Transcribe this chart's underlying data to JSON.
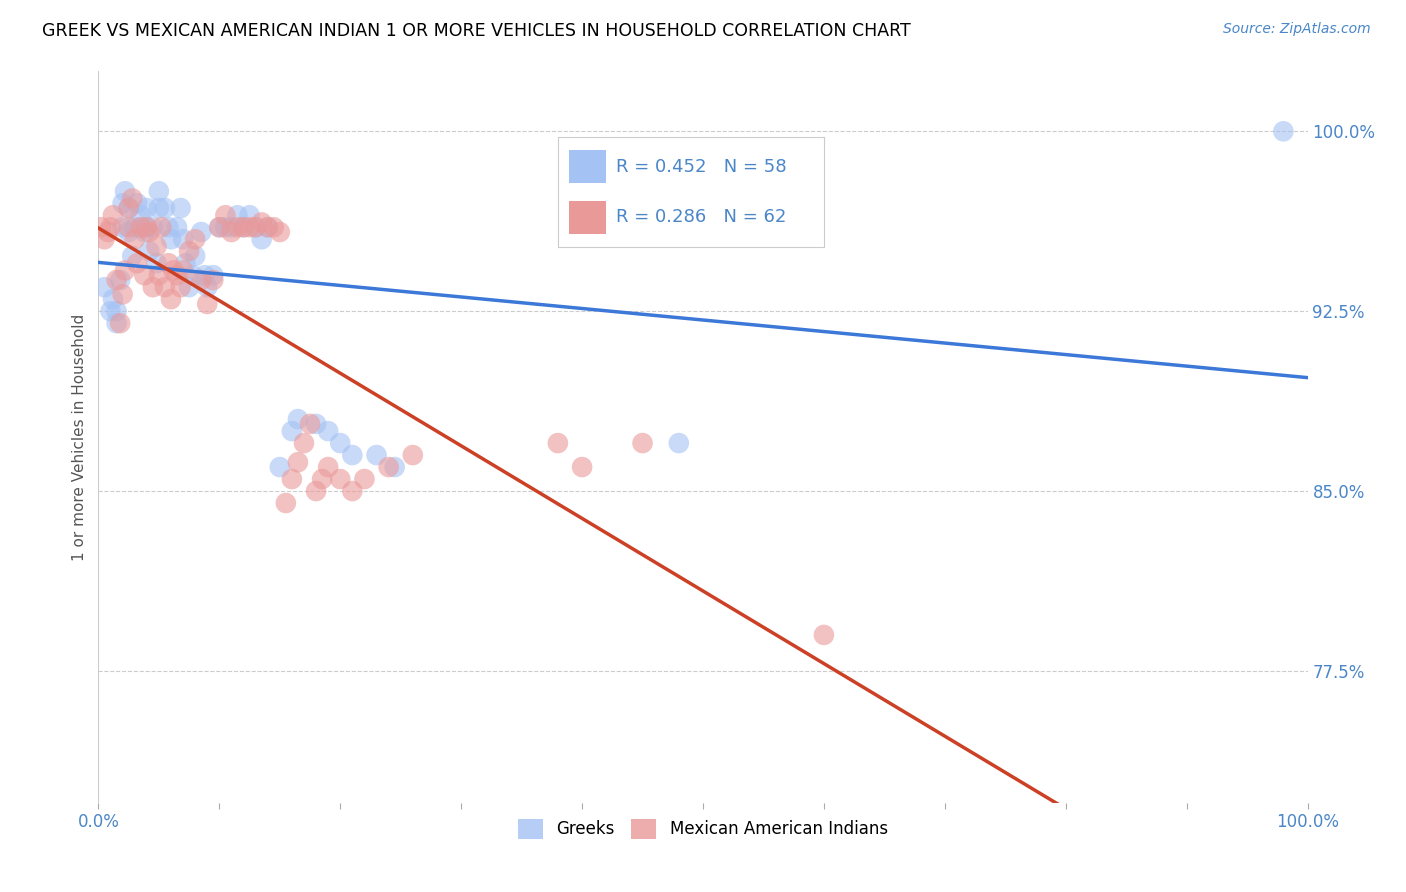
{
  "title": "GREEK VS MEXICAN AMERICAN INDIAN 1 OR MORE VEHICLES IN HOUSEHOLD CORRELATION CHART",
  "source": "Source: ZipAtlas.com",
  "ylabel": "1 or more Vehicles in Household",
  "xlim": [
    0.0,
    1.0
  ],
  "ylim": [
    0.72,
    1.025
  ],
  "yticks": [
    0.775,
    0.85,
    0.925,
    1.0
  ],
  "ytick_labels": [
    "77.5%",
    "85.0%",
    "92.5%",
    "100.0%"
  ],
  "xticks": [
    0.0,
    0.1,
    0.2,
    0.3,
    0.4,
    0.5,
    0.6,
    0.7,
    0.8,
    0.9,
    1.0
  ],
  "xtick_labels": [
    "0.0%",
    "",
    "",
    "",
    "",
    "",
    "",
    "",
    "",
    "",
    "100.0%"
  ],
  "blue_color": "#a4c2f4",
  "pink_color": "#ea9999",
  "line_blue": "#3c78d8",
  "line_pink": "#cc4125",
  "R_blue": 0.452,
  "N_blue": 58,
  "R_pink": 0.286,
  "N_pink": 62,
  "greek_x": [
    0.005,
    0.01,
    0.012,
    0.015,
    0.015,
    0.018,
    0.02,
    0.02,
    0.022,
    0.025,
    0.025,
    0.028,
    0.03,
    0.032,
    0.035,
    0.035,
    0.038,
    0.04,
    0.04,
    0.042,
    0.045,
    0.048,
    0.05,
    0.05,
    0.055,
    0.058,
    0.06,
    0.065,
    0.068,
    0.07,
    0.072,
    0.075,
    0.078,
    0.08,
    0.085,
    0.088,
    0.09,
    0.095,
    0.1,
    0.105,
    0.11,
    0.115,
    0.12,
    0.125,
    0.13,
    0.135,
    0.14,
    0.15,
    0.16,
    0.165,
    0.18,
    0.19,
    0.2,
    0.21,
    0.23,
    0.245,
    0.48,
    0.98
  ],
  "greek_y": [
    0.935,
    0.925,
    0.93,
    0.92,
    0.925,
    0.938,
    0.96,
    0.97,
    0.975,
    0.968,
    0.958,
    0.948,
    0.96,
    0.97,
    0.96,
    0.965,
    0.958,
    0.96,
    0.968,
    0.95,
    0.96,
    0.945,
    0.968,
    0.975,
    0.968,
    0.96,
    0.955,
    0.96,
    0.968,
    0.955,
    0.945,
    0.935,
    0.94,
    0.948,
    0.958,
    0.94,
    0.935,
    0.94,
    0.96,
    0.96,
    0.96,
    0.965,
    0.96,
    0.965,
    0.96,
    0.955,
    0.96,
    0.86,
    0.875,
    0.88,
    0.878,
    0.875,
    0.87,
    0.865,
    0.865,
    0.86,
    0.87,
    1.0
  ],
  "mexican_x": [
    0.002,
    0.005,
    0.008,
    0.01,
    0.012,
    0.015,
    0.018,
    0.02,
    0.022,
    0.025,
    0.025,
    0.028,
    0.03,
    0.032,
    0.035,
    0.038,
    0.04,
    0.042,
    0.045,
    0.048,
    0.05,
    0.052,
    0.055,
    0.058,
    0.06,
    0.062,
    0.065,
    0.068,
    0.07,
    0.075,
    0.08,
    0.085,
    0.09,
    0.095,
    0.1,
    0.105,
    0.11,
    0.115,
    0.12,
    0.125,
    0.13,
    0.135,
    0.14,
    0.145,
    0.15,
    0.155,
    0.16,
    0.165,
    0.17,
    0.175,
    0.18,
    0.185,
    0.19,
    0.2,
    0.21,
    0.22,
    0.24,
    0.26,
    0.38,
    0.4,
    0.45,
    0.6
  ],
  "mexican_y": [
    0.96,
    0.955,
    0.958,
    0.96,
    0.965,
    0.938,
    0.92,
    0.932,
    0.942,
    0.96,
    0.968,
    0.972,
    0.955,
    0.945,
    0.96,
    0.94,
    0.96,
    0.958,
    0.935,
    0.952,
    0.94,
    0.96,
    0.935,
    0.945,
    0.93,
    0.942,
    0.94,
    0.935,
    0.942,
    0.95,
    0.955,
    0.938,
    0.928,
    0.938,
    0.96,
    0.965,
    0.958,
    0.96,
    0.96,
    0.96,
    0.96,
    0.962,
    0.96,
    0.96,
    0.958,
    0.845,
    0.855,
    0.862,
    0.87,
    0.878,
    0.85,
    0.855,
    0.86,
    0.855,
    0.85,
    0.855,
    0.86,
    0.865,
    0.87,
    0.86,
    0.87,
    0.79
  ]
}
